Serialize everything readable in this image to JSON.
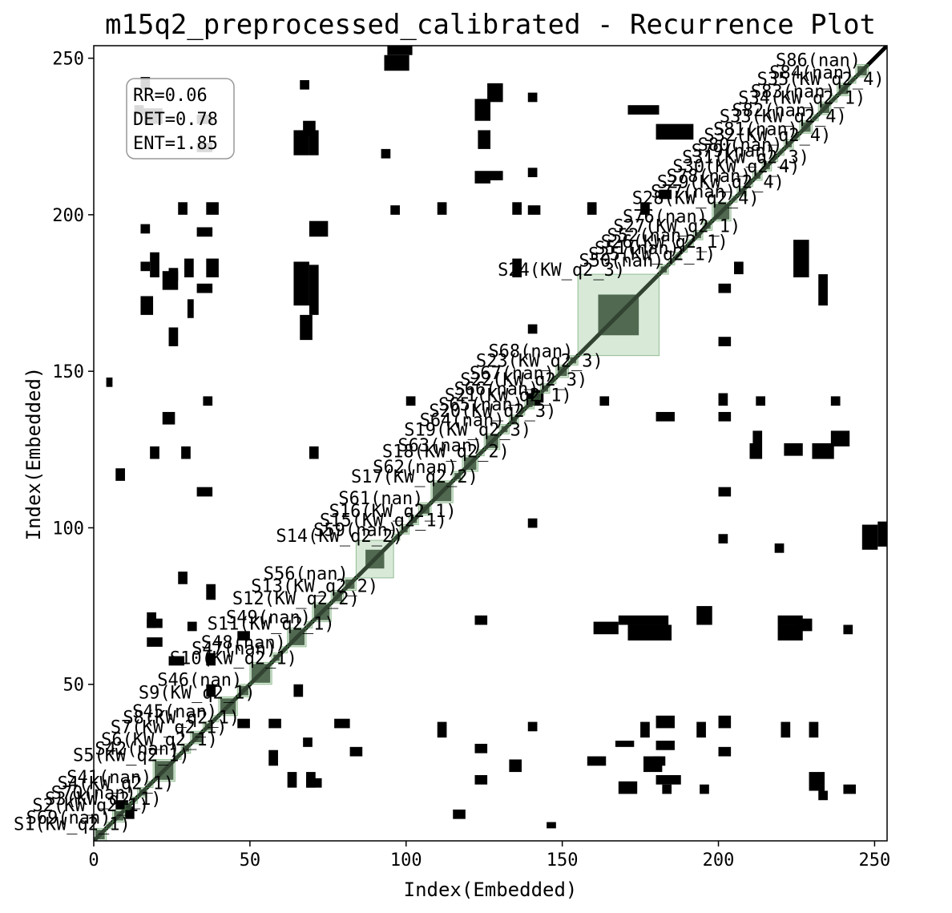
{
  "chart_data": {
    "type": "heatmap",
    "title": "m15q2_preprocessed_calibrated - Recurrence Plot",
    "xlabel": "Index(Embedded)",
    "ylabel": "Index(Embedded)",
    "xlim": [
      0,
      254
    ],
    "ylim": [
      0,
      254
    ],
    "xticks": [
      0,
      50,
      100,
      150,
      200,
      250
    ],
    "yticks": [
      50,
      100,
      150,
      200,
      250
    ],
    "n": 254,
    "stats": {
      "rr": "RR=0.06",
      "det": "DET=0.78",
      "ent": "ENT=1.85"
    },
    "colors": {
      "recurrence": "#000000",
      "segment_fill": "#8fbf8f",
      "segment_edge": "#5a9a5a"
    },
    "offdiagonal_blocks": [
      [
        94,
        251,
        8,
        4
      ],
      [
        126,
        236,
        5,
        6
      ],
      [
        16,
        229,
        6,
        5
      ],
      [
        69,
        219,
        3,
        8
      ],
      [
        64,
        219,
        5,
        8
      ],
      [
        127,
        211,
        4,
        3
      ],
      [
        123,
        221,
        4,
        6
      ],
      [
        27,
        200,
        3,
        4
      ],
      [
        36,
        200,
        4,
        4
      ],
      [
        110,
        200,
        3,
        4
      ],
      [
        134,
        200,
        3,
        4
      ],
      [
        158,
        200,
        3,
        4
      ],
      [
        175,
        200,
        3,
        4
      ],
      [
        18,
        180,
        3,
        8
      ],
      [
        29,
        180,
        3,
        6
      ],
      [
        36,
        180,
        4,
        6
      ],
      [
        134,
        180,
        3,
        6
      ],
      [
        205,
        181,
        3,
        4
      ],
      [
        224,
        180,
        5,
        12
      ],
      [
        64,
        171,
        5,
        14
      ],
      [
        69,
        168,
        3,
        16
      ],
      [
        30,
        167,
        2,
        6
      ],
      [
        232,
        171,
        3,
        10
      ],
      [
        4,
        145,
        2,
        3
      ],
      [
        35,
        139,
        3,
        3
      ],
      [
        100,
        139,
        3,
        3
      ],
      [
        140,
        139,
        3,
        5
      ],
      [
        200,
        139,
        3,
        4
      ],
      [
        212,
        139,
        3,
        3
      ],
      [
        236,
        139,
        3,
        3
      ],
      [
        162,
        139,
        3,
        3
      ],
      [
        18,
        122,
        3,
        4
      ],
      [
        28,
        122,
        3,
        4
      ],
      [
        69,
        122,
        3,
        4
      ],
      [
        210,
        122,
        4,
        5
      ],
      [
        230,
        122,
        7,
        5
      ],
      [
        27,
        82,
        3,
        4
      ],
      [
        36,
        77,
        3,
        5
      ],
      [
        200,
        95,
        3,
        3
      ],
      [
        218,
        92,
        3,
        3
      ],
      [
        246,
        93,
        5,
        8
      ],
      [
        193,
        69,
        5,
        6
      ],
      [
        160,
        66,
        8,
        4
      ],
      [
        225,
        67,
        5,
        4
      ],
      [
        240,
        66,
        3,
        3
      ],
      [
        17,
        68,
        3,
        5
      ],
      [
        30,
        67,
        3,
        3
      ],
      [
        36,
        56,
        3,
        4
      ],
      [
        36,
        46,
        3,
        4
      ],
      [
        64,
        46,
        3,
        4
      ],
      [
        193,
        33,
        3,
        5
      ],
      [
        175,
        33,
        3,
        5
      ],
      [
        110,
        33,
        3,
        5
      ],
      [
        220,
        33,
        3,
        5
      ],
      [
        229,
        33,
        3,
        5
      ],
      [
        158,
        24,
        6,
        3
      ],
      [
        179,
        24,
        4,
        3
      ],
      [
        176,
        22,
        6,
        5
      ],
      [
        133,
        22,
        4,
        4
      ],
      [
        56,
        24,
        3,
        5
      ],
      [
        168,
        15,
        6,
        4
      ],
      [
        182,
        15,
        3,
        3
      ],
      [
        194,
        15,
        3,
        3
      ],
      [
        62,
        17,
        3,
        5
      ],
      [
        68,
        17,
        3,
        5
      ],
      [
        232,
        13,
        3,
        3
      ],
      [
        240,
        15,
        4,
        3
      ],
      [
        10,
        7,
        3,
        4
      ],
      [
        115,
        7,
        4,
        3
      ]
    ],
    "segments": [
      {
        "label": "S1(KW_q2_1)",
        "x0": 0,
        "x1": 4
      },
      {
        "label": "S69(nan)",
        "x0": 4,
        "x1": 6
      },
      {
        "label": "S2(KW_q2_1)",
        "x0": 6,
        "x1": 10
      },
      {
        "label": "S3(KW_q2_1)",
        "x0": 10,
        "x1": 12
      },
      {
        "label": "S70(nan)",
        "x0": 12,
        "x1": 14
      },
      {
        "label": "S4(KW_q2_1)",
        "x0": 14,
        "x1": 17
      },
      {
        "label": "S41(nan)",
        "x0": 17,
        "x1": 19
      },
      {
        "label": "S5(KW_q2_1)",
        "x0": 19,
        "x1": 26
      },
      {
        "label": "S42(nan)",
        "x0": 26,
        "x1": 28
      },
      {
        "label": "S6(KW_q2_1)",
        "x0": 28,
        "x1": 31
      },
      {
        "label": "S7(KW_q2_1)",
        "x0": 31,
        "x1": 35
      },
      {
        "label": "S8(KW_q2_1)",
        "x0": 35,
        "x1": 38
      },
      {
        "label": "S45(nan)",
        "x0": 38,
        "x1": 40
      },
      {
        "label": "S9(KW_q2_1)",
        "x0": 40,
        "x1": 46
      },
      {
        "label": "S46(nan)",
        "x0": 46,
        "x1": 50
      },
      {
        "label": "S10(KW_q2_1)",
        "x0": 50,
        "x1": 57
      },
      {
        "label": "S47(nan)",
        "x0": 57,
        "x1": 60
      },
      {
        "label": "S48(nan)",
        "x0": 60,
        "x1": 62
      },
      {
        "label": "S11(KW_q2_1)",
        "x0": 62,
        "x1": 68
      },
      {
        "label": "S49(nan)",
        "x0": 68,
        "x1": 70
      },
      {
        "label": "S12(KW_q2_2)",
        "x0": 70,
        "x1": 76
      },
      {
        "label": "S13(KW_q2_2)",
        "x0": 76,
        "x1": 80
      },
      {
        "label": "S56(nan)",
        "x0": 80,
        "x1": 84
      },
      {
        "label": "S14(KW_q2_2)",
        "x0": 84,
        "x1": 96
      },
      {
        "label": "S59(nan)",
        "x0": 96,
        "x1": 98
      },
      {
        "label": "S15(KW_q2_1)",
        "x0": 98,
        "x1": 101
      },
      {
        "label": "S16(KW_q2_1)",
        "x0": 101,
        "x1": 104
      },
      {
        "label": "S61(nan)",
        "x0": 104,
        "x1": 108
      },
      {
        "label": "S17(KW_q2_2)",
        "x0": 108,
        "x1": 115
      },
      {
        "label": "S62(nan)",
        "x0": 115,
        "x1": 118
      },
      {
        "label": "S18(KW_q2_2)",
        "x0": 118,
        "x1": 123
      },
      {
        "label": "S63(nan)",
        "x0": 123,
        "x1": 125
      },
      {
        "label": "S19(KW_q2_3)",
        "x0": 125,
        "x1": 130
      },
      {
        "label": "S64(nan)",
        "x0": 130,
        "x1": 133
      },
      {
        "label": "S20(KW_q2_3)",
        "x0": 133,
        "x1": 136
      },
      {
        "label": "S65(nan)",
        "x0": 136,
        "x1": 138
      },
      {
        "label": "S21(KW_q2_1)",
        "x0": 138,
        "x1": 141
      },
      {
        "label": "S66(nan)",
        "x0": 141,
        "x1": 143
      },
      {
        "label": "S22(KW_q2_3)",
        "x0": 143,
        "x1": 146
      },
      {
        "label": "S67(nan)",
        "x0": 146,
        "x1": 148
      },
      {
        "label": "S23(KW_q2_3)",
        "x0": 148,
        "x1": 152
      },
      {
        "label": "S68(nan)",
        "x0": 152,
        "x1": 155
      },
      {
        "label": "S24(KW_q2_3)",
        "x0": 155,
        "x1": 181
      },
      {
        "label": "S50(nan)",
        "x0": 181,
        "x1": 184
      },
      {
        "label": "S25(KW_q2_1)",
        "x0": 184,
        "x1": 186
      },
      {
        "label": "S51(nan)",
        "x0": 186,
        "x1": 188
      },
      {
        "label": "S26(KW_q2_1)",
        "x0": 188,
        "x1": 190
      },
      {
        "label": "S52(nan)",
        "x0": 190,
        "x1": 192
      },
      {
        "label": "S27(KW_q2_1)",
        "x0": 192,
        "x1": 195
      },
      {
        "label": "S76(nan)",
        "x0": 195,
        "x1": 198
      },
      {
        "label": "S28(KW_q2_4)",
        "x0": 198,
        "x1": 204
      },
      {
        "label": "S77(nan)",
        "x0": 204,
        "x1": 206
      },
      {
        "label": "S29(KW_q2_4)",
        "x0": 206,
        "x1": 209
      },
      {
        "label": "S78(nan)",
        "x0": 209,
        "x1": 211
      },
      {
        "label": "S30(KW_q2_4)",
        "x0": 211,
        "x1": 214
      },
      {
        "label": "S31(KW_q2_3)",
        "x0": 214,
        "x1": 217
      },
      {
        "label": "S79(nan)",
        "x0": 217,
        "x1": 219
      },
      {
        "label": "S80(nan)",
        "x0": 219,
        "x1": 221
      },
      {
        "label": "S32(KW_q2_4)",
        "x0": 221,
        "x1": 224
      },
      {
        "label": "S81(nan)",
        "x0": 224,
        "x1": 226
      },
      {
        "label": "S33(KW_q2_4)",
        "x0": 226,
        "x1": 230
      },
      {
        "label": "S82(nan)",
        "x0": 230,
        "x1": 232
      },
      {
        "label": "S34(KW_q2_1)",
        "x0": 232,
        "x1": 236
      },
      {
        "label": "S83(nan)",
        "x0": 236,
        "x1": 238
      },
      {
        "label": "S35(KW_q2_4)",
        "x0": 238,
        "x1": 242
      },
      {
        "label": "S84(nan)",
        "x0": 242,
        "x1": 244
      },
      {
        "label": "S86(nan)",
        "x0": 244,
        "x1": 248
      }
    ]
  }
}
